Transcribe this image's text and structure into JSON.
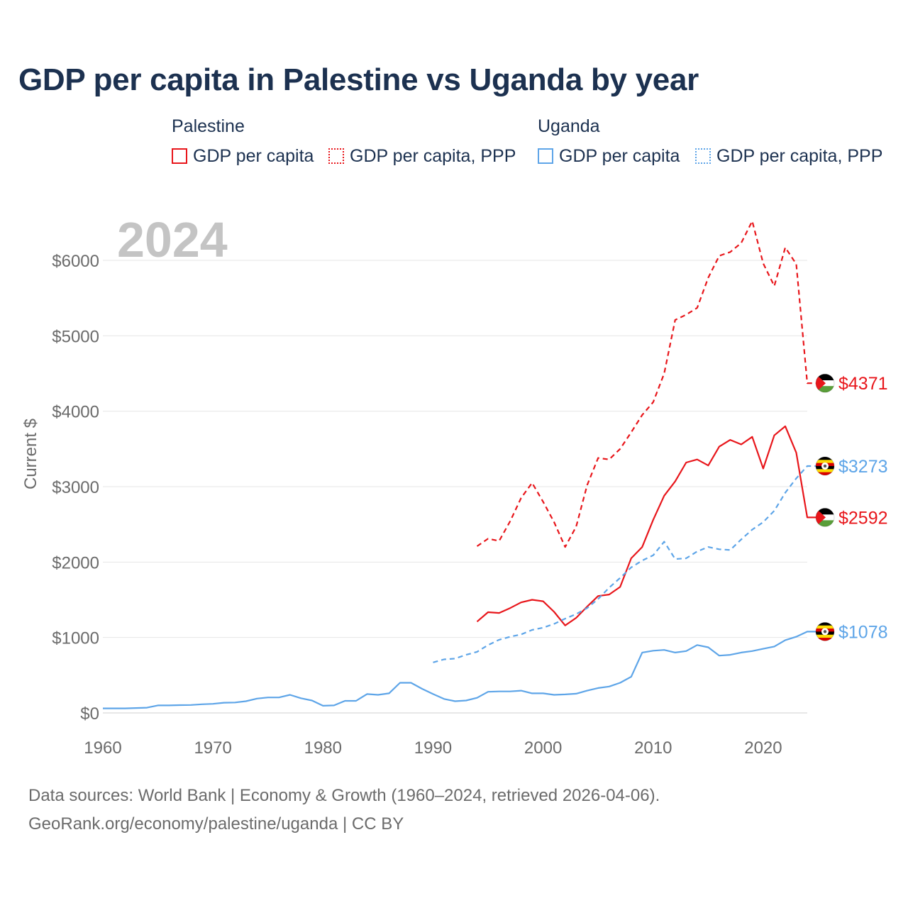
{
  "title": "GDP per capita in Palestine vs Uganda by year",
  "legend": {
    "palestine": {
      "group": "Palestine",
      "items": [
        {
          "label": "GDP per capita",
          "style": "solid",
          "color": "#e8161b"
        },
        {
          "label": "GDP per capita, PPP",
          "style": "dotted",
          "color": "#e8161b"
        }
      ]
    },
    "uganda": {
      "group": "Uganda",
      "items": [
        {
          "label": "GDP per capita",
          "style": "solid",
          "color": "#5ea5e8"
        },
        {
          "label": "GDP per capita, PPP",
          "style": "dotted",
          "color": "#5ea5e8"
        }
      ]
    }
  },
  "year_watermark": "2024",
  "chart_data": {
    "type": "line",
    "title": "GDP per capita in Palestine vs Uganda by year",
    "xlabel": "",
    "ylabel": "Current $",
    "xlim": [
      1960,
      2024
    ],
    "ylim": [
      0,
      6000
    ],
    "x_ticks": [
      1960,
      1970,
      1980,
      1990,
      2000,
      2010,
      2020
    ],
    "x_tick_labels": [
      "1960",
      "1970",
      "1980",
      "1990",
      "2000",
      "2010",
      "2020"
    ],
    "y_ticks": [
      0,
      1000,
      2000,
      3000,
      4000,
      5000,
      6000
    ],
    "y_tick_labels": [
      "$0",
      "$1000",
      "$2000",
      "$3000",
      "$4000",
      "$5000",
      "$6000"
    ],
    "grid": true,
    "series": [
      {
        "name": "Palestine GDP per capita, PPP",
        "country": "Palestine",
        "style": "dashed",
        "color": "#e8161b",
        "x": [
          1994,
          1995,
          1996,
          1997,
          1998,
          1999,
          2000,
          2001,
          2002,
          2003,
          2004,
          2005,
          2006,
          2007,
          2008,
          2009,
          2010,
          2011,
          2012,
          2013,
          2014,
          2015,
          2016,
          2017,
          2018,
          2019,
          2020,
          2021,
          2022,
          2023,
          2024
        ],
        "values": [
          2210,
          2310,
          2280,
          2540,
          2850,
          3050,
          2800,
          2530,
          2200,
          2470,
          3020,
          3380,
          3360,
          3500,
          3720,
          3950,
          4120,
          4500,
          5210,
          5280,
          5370,
          5770,
          6060,
          6110,
          6230,
          6520,
          5960,
          5660,
          6170,
          5950,
          4371
        ],
        "end_label": "$4371",
        "flag": "palestine"
      },
      {
        "name": "Palestine GDP per capita",
        "country": "Palestine",
        "style": "solid",
        "color": "#e8161b",
        "x": [
          1994,
          1995,
          1996,
          1997,
          1998,
          1999,
          2000,
          2001,
          2002,
          2003,
          2004,
          2005,
          2006,
          2007,
          2008,
          2009,
          2010,
          2011,
          2012,
          2013,
          2014,
          2015,
          2016,
          2017,
          2018,
          2019,
          2020,
          2021,
          2022,
          2023,
          2024
        ],
        "values": [
          1210,
          1335,
          1325,
          1390,
          1465,
          1500,
          1480,
          1340,
          1160,
          1260,
          1410,
          1550,
          1570,
          1670,
          2050,
          2200,
          2560,
          2880,
          3070,
          3320,
          3360,
          3280,
          3530,
          3620,
          3560,
          3660,
          3240,
          3680,
          3800,
          3450,
          2592
        ],
        "end_label": "$2592",
        "flag": "palestine"
      },
      {
        "name": "Uganda GDP per capita, PPP",
        "country": "Uganda",
        "style": "dashed",
        "color": "#5ea5e8",
        "x": [
          1990,
          1991,
          1992,
          1993,
          1994,
          1995,
          1996,
          1997,
          1998,
          1999,
          2000,
          2001,
          2002,
          2003,
          2004,
          2005,
          2006,
          2007,
          2008,
          2009,
          2010,
          2011,
          2012,
          2013,
          2014,
          2015,
          2016,
          2017,
          2018,
          2019,
          2020,
          2021,
          2022,
          2023,
          2024
        ],
        "values": [
          670,
          710,
          720,
          770,
          810,
          900,
          970,
          1010,
          1040,
          1100,
          1130,
          1180,
          1250,
          1310,
          1390,
          1510,
          1660,
          1790,
          1930,
          2020,
          2090,
          2270,
          2040,
          2050,
          2140,
          2200,
          2170,
          2160,
          2300,
          2430,
          2530,
          2680,
          2920,
          3110,
          3273
        ],
        "end_label": "$3273",
        "flag": "uganda"
      },
      {
        "name": "Uganda GDP per capita",
        "country": "Uganda",
        "style": "solid",
        "color": "#5ea5e8",
        "x": [
          1960,
          1961,
          1962,
          1963,
          1964,
          1965,
          1966,
          1967,
          1968,
          1969,
          1970,
          1971,
          1972,
          1973,
          1974,
          1975,
          1976,
          1977,
          1978,
          1979,
          1980,
          1981,
          1982,
          1983,
          1984,
          1985,
          1986,
          1987,
          1988,
          1989,
          1990,
          1991,
          1992,
          1993,
          1994,
          1995,
          1996,
          1997,
          1998,
          1999,
          2000,
          2001,
          2002,
          2003,
          2004,
          2005,
          2006,
          2007,
          2008,
          2009,
          2010,
          2011,
          2012,
          2013,
          2014,
          2015,
          2016,
          2017,
          2018,
          2019,
          2020,
          2021,
          2022,
          2023,
          2024
        ],
        "values": [
          60,
          60,
          60,
          65,
          70,
          100,
          100,
          103,
          105,
          115,
          120,
          135,
          138,
          155,
          190,
          205,
          205,
          240,
          195,
          165,
          95,
          100,
          160,
          160,
          250,
          240,
          260,
          400,
          400,
          320,
          250,
          185,
          155,
          165,
          200,
          280,
          285,
          285,
          295,
          260,
          260,
          240,
          245,
          255,
          295,
          330,
          350,
          400,
          480,
          800,
          825,
          835,
          800,
          820,
          900,
          870,
          760,
          770,
          800,
          820,
          850,
          880,
          965,
          1010,
          1078
        ],
        "end_label": "$1078",
        "flag": "uganda"
      }
    ]
  },
  "footer": {
    "line1": "Data sources: World Bank | Economy & Growth (1960–2024, retrieved 2026-04-06).",
    "line2": "GeoRank.org/economy/palestine/uganda | CC BY"
  }
}
